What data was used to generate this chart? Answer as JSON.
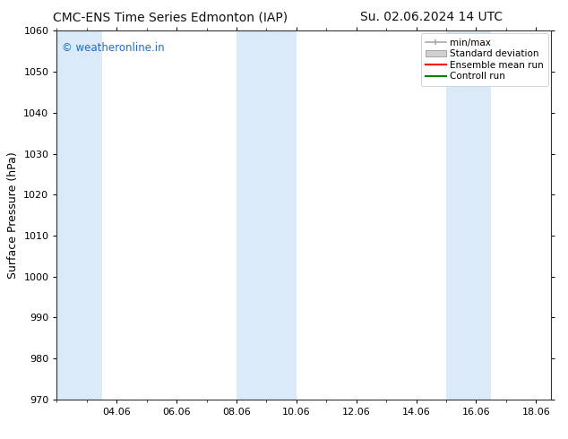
{
  "title_left": "CMC-ENS Time Series Edmonton (IAP)",
  "title_right": "Su. 02.06.2024 14 UTC",
  "ylabel": "Surface Pressure (hPa)",
  "ylim": [
    970,
    1060
  ],
  "yticks": [
    970,
    980,
    990,
    1000,
    1010,
    1020,
    1030,
    1040,
    1050,
    1060
  ],
  "xlim_start": 2.0,
  "xlim_end": 18.5,
  "xtick_labels": [
    "04.06",
    "06.06",
    "08.06",
    "10.06",
    "12.06",
    "14.06",
    "16.06",
    "18.06"
  ],
  "xtick_positions": [
    4.0,
    6.0,
    8.0,
    10.0,
    12.0,
    14.0,
    16.0,
    18.0
  ],
  "shaded_bands": [
    {
      "xmin": 2.0,
      "xmax": 3.5,
      "color": "#daeaf8"
    },
    {
      "xmin": 8.0,
      "xmax": 10.0,
      "color": "#daeaf8"
    },
    {
      "xmin": 15.0,
      "xmax": 16.5,
      "color": "#daeaf8"
    }
  ],
  "watermark_text": "© weatheronline.in",
  "watermark_color": "#1a6ecc",
  "legend_labels": [
    "min/max",
    "Standard deviation",
    "Ensemble mean run",
    "Controll run"
  ],
  "legend_colors_line": [
    "#aaaaaa",
    "#cccccc",
    "#ff0000",
    "#008000"
  ],
  "bg_color": "#ffffff",
  "plot_bg_color": "#ffffff",
  "title_fontsize": 10,
  "axis_label_fontsize": 9,
  "tick_fontsize": 8,
  "legend_fontsize": 7.5
}
